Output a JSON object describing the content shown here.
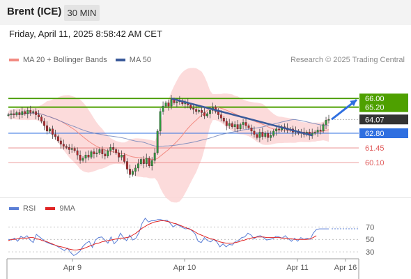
{
  "header": {
    "symbol": "Brent (ICE)",
    "timeframe": "30 MIN"
  },
  "datetime": "Friday, April 11, 2025 8:58:42 AM CET",
  "legend": {
    "price_items": [
      {
        "label": "MA 20 + Bollinger Bands",
        "color": "#f28b82"
      },
      {
        "label": "MA 50",
        "color": "#3a5a9a"
      }
    ],
    "credit": "Research © 2025 Trading Central",
    "rsi_items": [
      {
        "label": "RSI",
        "color": "#5b7fd6"
      },
      {
        "label": "9MA",
        "color": "#e02424"
      }
    ]
  },
  "chart_data": [
    {
      "type": "candlestick",
      "title": "Brent (ICE) 30 MIN",
      "x_ticks": [
        "Apr 9",
        "Apr 10",
        "Apr 11",
        "Apr 16"
      ],
      "levels": [
        {
          "value": 66.0,
          "label": "66.00",
          "style": "resistance",
          "color": "#4ea000"
        },
        {
          "value": 65.2,
          "label": "65.20",
          "style": "resistance",
          "color": "#4ea000"
        },
        {
          "value": 64.07,
          "label": "64.07",
          "style": "last",
          "color": "#333333"
        },
        {
          "value": 62.8,
          "label": "62.80",
          "style": "pivot",
          "color": "#2f6fe0"
        },
        {
          "value": 61.45,
          "label": "61.45",
          "style": "support",
          "color": "#e05c5c"
        },
        {
          "value": 60.1,
          "label": "60.10",
          "style": "support",
          "color": "#e05c5c"
        }
      ],
      "ylim": [
        56.9,
        68.0
      ],
      "close_series": [
        64.5,
        64.6,
        64.5,
        64.7,
        64.5,
        64.8,
        64.6,
        64.9,
        64.7,
        64.8,
        64.5,
        64.3,
        63.9,
        63.5,
        63.0,
        63.2,
        62.7,
        62.5,
        62.1,
        61.8,
        61.6,
        61.5,
        61.3,
        61.4,
        61.2,
        60.8,
        60.3,
        60.5,
        60.8,
        60.6,
        61.1,
        60.9,
        61.0,
        61.3,
        60.9,
        60.7,
        61.2,
        61.5,
        61.3,
        61.0,
        60.6,
        60.8,
        60.2,
        59.5,
        59.0,
        59.3,
        59.6,
        60.0,
        60.4,
        60.0,
        60.5,
        59.8,
        60.3,
        61.0,
        63.0,
        64.8,
        65.3,
        65.6,
        65.3,
        65.9,
        65.6,
        65.7,
        65.8,
        65.5,
        65.6,
        65.4,
        65.1,
        65.0,
        64.8,
        64.9,
        64.7,
        64.4,
        64.6,
        64.9,
        65.2,
        64.8,
        64.5,
        64.2,
        63.9,
        63.5,
        63.7,
        63.4,
        63.6,
        63.2,
        63.6,
        63.8,
        63.5,
        63.3,
        63.0,
        62.7,
        62.4,
        62.9,
        62.5,
        62.8,
        62.4,
        62.6,
        63.0,
        63.2,
        63.1,
        63.4,
        63.3,
        63.1,
        63.2,
        62.9,
        63.0,
        62.8,
        62.9,
        62.7,
        62.9,
        62.6,
        62.8,
        62.9,
        63.1,
        63.0,
        63.6,
        64.0,
        64.07
      ],
      "projection_arrow": {
        "from": 64.07,
        "to": 66.0
      },
      "trend_line": {
        "from": 66.0,
        "to": 62.6
      }
    },
    {
      "type": "line",
      "title": "RSI",
      "series": [
        {
          "name": "RSI",
          "color": "#5b7fd6",
          "values": [
            50,
            49,
            52,
            47,
            55,
            52,
            56,
            49,
            45,
            58,
            54,
            50,
            46,
            44,
            42,
            41,
            38,
            35,
            32,
            36,
            29,
            24,
            27,
            31,
            39,
            44,
            47,
            37,
            49,
            53,
            54,
            49,
            44,
            54,
            43,
            48,
            60,
            53,
            48,
            57,
            49,
            52,
            61,
            76,
            84,
            78,
            80,
            80,
            82,
            82,
            80,
            81,
            76,
            70,
            74,
            72,
            69,
            67,
            68,
            64,
            59,
            47,
            45,
            53,
            48,
            46,
            50,
            46,
            38,
            43,
            38,
            42,
            41,
            47,
            48,
            53,
            54,
            60,
            57,
            51,
            55,
            56,
            53,
            49,
            50,
            51,
            55,
            54,
            52,
            56,
            51,
            47,
            52,
            47,
            53,
            50,
            52,
            50,
            60,
            66,
            67,
            67,
            67,
            67
          ]
        },
        {
          "name": "9MA",
          "color": "#e02424",
          "values": [
            48,
            50,
            50,
            51,
            52,
            52,
            52,
            53,
            53,
            51,
            50,
            48,
            47,
            45,
            43,
            41,
            39,
            38,
            37,
            35,
            34,
            33,
            33,
            34,
            35,
            37,
            39,
            41,
            43,
            44,
            46,
            47,
            48,
            49,
            50,
            51,
            52,
            52,
            53,
            54,
            57,
            60,
            64,
            68,
            71,
            74,
            76,
            78,
            79,
            80,
            80,
            79,
            78,
            76,
            75,
            73,
            71,
            69,
            67,
            65,
            62,
            59,
            57,
            55,
            53,
            51,
            50,
            48,
            46,
            45,
            44,
            44,
            44,
            45,
            46,
            48,
            49,
            51,
            52,
            53,
            54,
            54,
            54,
            53,
            53,
            53,
            53,
            53,
            52,
            52,
            51,
            51,
            50,
            50,
            50,
            50,
            50,
            51,
            53,
            56
          ]
        }
      ],
      "ylim": [
        20,
        85
      ],
      "y_ticks": [
        "70",
        "50",
        "30"
      ],
      "reference_values": [
        70,
        50,
        30
      ]
    }
  ]
}
